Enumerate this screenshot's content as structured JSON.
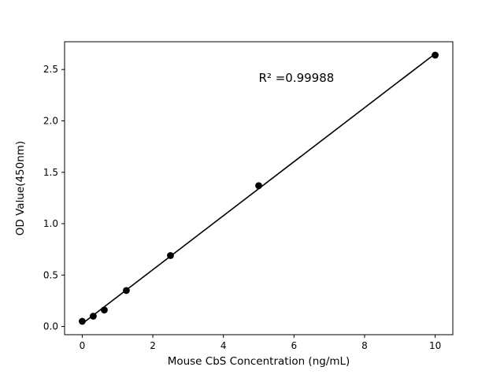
{
  "chart_data": {
    "type": "scatter",
    "title": "",
    "xlabel": "Mouse CbS Concentration (ng/mL)",
    "ylabel": "OD Value(450nm)",
    "annotation": "R² =0.99988",
    "annotation_xy": [
      5.0,
      2.38
    ],
    "x": [
      0,
      0.3125,
      0.625,
      1.25,
      2.5,
      5,
      10
    ],
    "y": [
      0.05,
      0.1,
      0.16,
      0.35,
      0.69,
      1.37,
      2.64
    ],
    "x_tick_values": [
      0,
      2,
      4,
      6,
      8,
      10
    ],
    "x_tick_labels": [
      "0",
      "2",
      "4",
      "6",
      "8",
      "10"
    ],
    "y_tick_values": [
      0,
      0.5,
      1.0,
      1.5,
      2.0,
      2.5
    ],
    "y_tick_labels": [
      "0.0",
      "0.5",
      "1.0",
      "1.5",
      "2.0",
      "2.5"
    ],
    "xlim": [
      -0.5,
      10.5
    ],
    "ylim": [
      -0.08,
      2.77
    ],
    "fit_line": true,
    "grid": false,
    "legend_position": "none",
    "marker_color": "#000000",
    "line_color": "#000000",
    "background_color": "#ffffff"
  }
}
